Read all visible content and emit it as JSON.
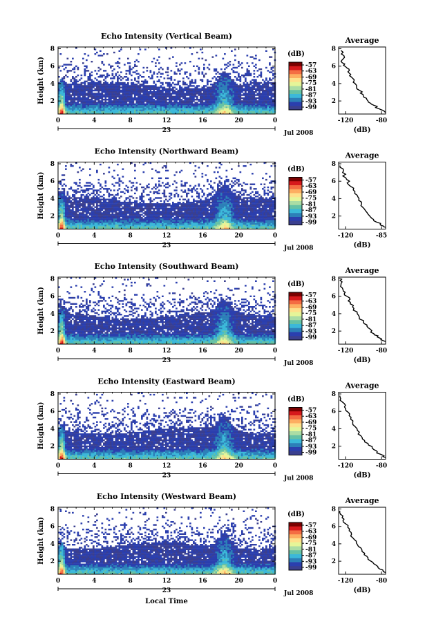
{
  "chart_data": {
    "type": "heatmap",
    "shared": {
      "x_ticks": [
        "0",
        "4",
        "8",
        "12",
        "16",
        "20",
        "0"
      ],
      "x_ticks_hours": [
        0,
        4,
        8,
        12,
        16,
        20,
        24
      ],
      "xlim": [
        0,
        24
      ],
      "date_day": "23",
      "date_label": "Jul 2008",
      "y_ticks": [
        "2",
        "4",
        "6",
        "8"
      ],
      "y_ticks_km": [
        2,
        4,
        6,
        8
      ],
      "ylim": [
        0.5,
        8.2
      ],
      "ylabel": "Height (km)",
      "xlabel": "Local Time",
      "colorbar_unit": "(dB)",
      "colorbar_ticks": [
        "-57",
        "-63",
        "-69",
        "-75",
        "-81",
        "-87",
        "-93",
        "-99"
      ],
      "colorbar_values": [
        -57,
        -63,
        -69,
        -75,
        -81,
        -87,
        -93,
        -99
      ],
      "colorbar_colors": [
        "#7a0000",
        "#d7191c",
        "#f46d43",
        "#fdae61",
        "#fee08b",
        "#e6f598",
        "#abdda4",
        "#66c2a5",
        "#3bb8d9",
        "#2c7fb8",
        "#2b3fae",
        "#3a3f8f"
      ],
      "avg_title": "Average",
      "avg_xlabel": "(dB)",
      "avg_y_ticks": [
        "2",
        "4",
        "6",
        "8"
      ]
    },
    "panels": [
      {
        "title": "Echo Intensity (Vertical Beam)",
        "avg_xticks": [
          "-120",
          "-80"
        ],
        "avg_xlim": [
          -120,
          -80
        ],
        "avg_profile": [
          [
            -80,
            0.7
          ],
          [
            -84,
            1.0
          ],
          [
            -90,
            1.5
          ],
          [
            -95,
            2.0
          ],
          [
            -99,
            2.6
          ],
          [
            -102,
            3.2
          ],
          [
            -106,
            4.0
          ],
          [
            -108,
            4.6
          ],
          [
            -111,
            5.2
          ],
          [
            -113,
            5.8
          ],
          [
            -117,
            6.4
          ],
          [
            -115,
            7.0
          ],
          [
            -118,
            7.8
          ]
        ]
      },
      {
        "title": "Echo Intensity (Northward Beam)",
        "avg_xticks": [
          "-120",
          "-85"
        ],
        "avg_xlim": [
          -120,
          -85
        ],
        "avg_profile": [
          [
            -85,
            0.7
          ],
          [
            -89,
            1.0
          ],
          [
            -94,
            1.6
          ],
          [
            -98,
            2.2
          ],
          [
            -102,
            3.0
          ],
          [
            -105,
            3.8
          ],
          [
            -108,
            4.6
          ],
          [
            -111,
            5.4
          ],
          [
            -114,
            6.2
          ],
          [
            -117,
            7.0
          ],
          [
            -119,
            7.8
          ]
        ]
      },
      {
        "title": "Echo Intensity (Southward Beam)",
        "avg_xticks": [
          "-120",
          "-80"
        ],
        "avg_xlim": [
          -120,
          -80
        ],
        "avg_profile": [
          [
            -80,
            0.8
          ],
          [
            -85,
            1.2
          ],
          [
            -90,
            1.7
          ],
          [
            -95,
            2.4
          ],
          [
            -99,
            3.0
          ],
          [
            -103,
            3.8
          ],
          [
            -107,
            4.6
          ],
          [
            -110,
            5.3
          ],
          [
            -113,
            6.0
          ],
          [
            -116,
            6.6
          ],
          [
            -118,
            7.3
          ],
          [
            -117,
            8.0
          ]
        ]
      },
      {
        "title": "Echo Intensity (Eastward Beam)",
        "avg_xticks": [
          "-120",
          "-80"
        ],
        "avg_xlim": [
          -120,
          -80
        ],
        "avg_profile": [
          [
            -80,
            0.7
          ],
          [
            -85,
            1.1
          ],
          [
            -90,
            1.6
          ],
          [
            -95,
            2.3
          ],
          [
            -100,
            3.0
          ],
          [
            -104,
            3.8
          ],
          [
            -108,
            4.7
          ],
          [
            -111,
            5.5
          ],
          [
            -114,
            6.3
          ],
          [
            -117,
            7.1
          ],
          [
            -119,
            7.8
          ]
        ]
      },
      {
        "title": "Echo Intensity (Westward Beam)",
        "avg_xticks": [
          "-120",
          "-80"
        ],
        "avg_xlim": [
          -120,
          -80
        ],
        "avg_profile": [
          [
            -80,
            0.7
          ],
          [
            -85,
            1.1
          ],
          [
            -90,
            1.7
          ],
          [
            -95,
            2.4
          ],
          [
            -100,
            3.1
          ],
          [
            -104,
            3.9
          ],
          [
            -108,
            4.7
          ],
          [
            -111,
            5.5
          ],
          [
            -114,
            6.3
          ],
          [
            -117,
            7.0
          ],
          [
            -119,
            7.8
          ]
        ]
      }
    ]
  }
}
